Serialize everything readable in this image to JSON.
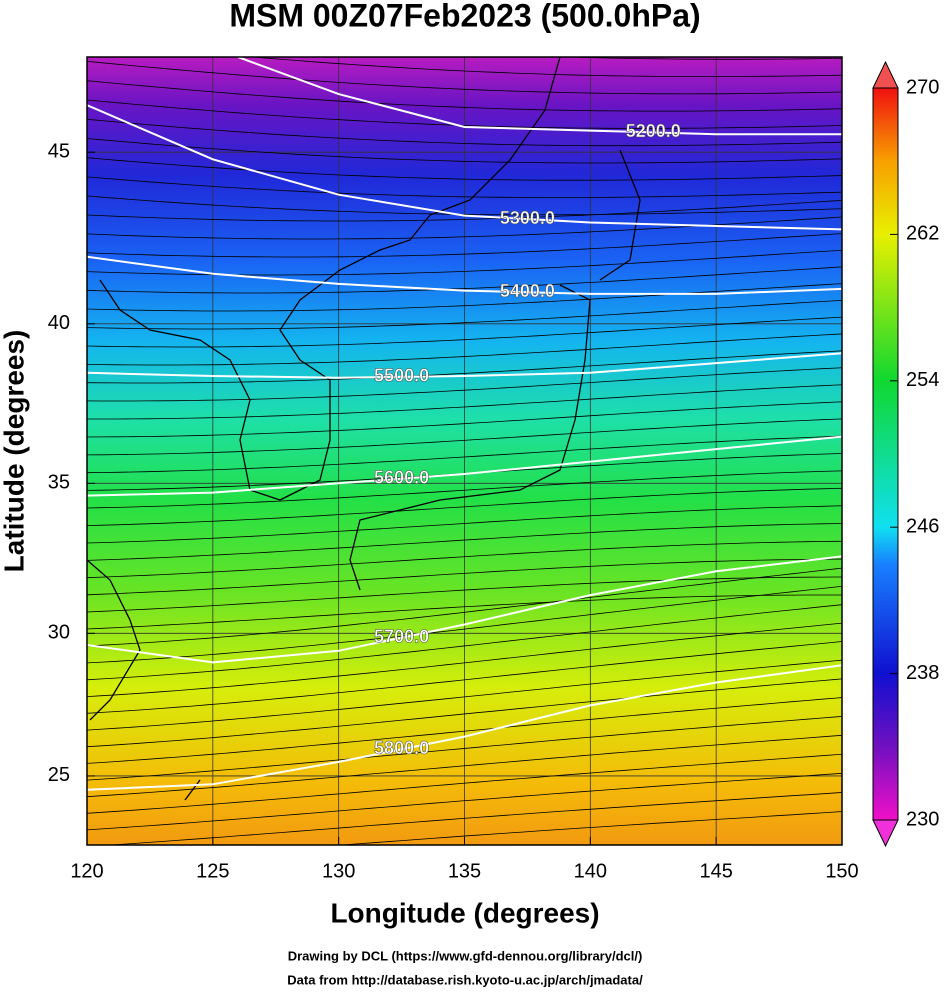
{
  "chart_data": {
    "type": "map",
    "title": "MSM 00Z07Feb2023 (500.0hPa)",
    "xlabel": "Longitude (degrees)",
    "ylabel": "Latitude  (degrees)",
    "xlim": [
      120,
      150
    ],
    "ylim": [
      22.5,
      47.6
    ],
    "yscale": "mercator",
    "xticks": [
      120,
      125,
      130,
      135,
      140,
      145,
      150
    ],
    "yticks": [
      25,
      30,
      35,
      40,
      45
    ],
    "colorbar": {
      "lim": [
        230,
        270
      ],
      "ticks": [
        230,
        238,
        246,
        254,
        262,
        270
      ]
    },
    "contour_color": "#ffffff",
    "contours": [
      {
        "value": 5200,
        "label": "5200.0",
        "lon": [
          126,
          130,
          135,
          140,
          145,
          150
        ],
        "lat": [
          47.6,
          46.6,
          45.7,
          45.6,
          45.5,
          45.5
        ]
      },
      {
        "value": 5300,
        "label": "5300.0",
        "lon": [
          120,
          125,
          130,
          135,
          140,
          145,
          150
        ],
        "lat": [
          46.3,
          44.8,
          43.8,
          43.2,
          43.0,
          42.9,
          42.8
        ]
      },
      {
        "value": 5400,
        "label": "5400.0",
        "lon": [
          120,
          125,
          130,
          135,
          140,
          145,
          150
        ],
        "lat": [
          42.0,
          41.5,
          41.2,
          41.0,
          40.9,
          40.9,
          41.05
        ]
      },
      {
        "value": 5500,
        "label": "5500.0",
        "lon": [
          120,
          125,
          130,
          135,
          140,
          145,
          150
        ],
        "lat": [
          38.5,
          38.4,
          38.35,
          38.4,
          38.5,
          38.8,
          39.1
        ]
      },
      {
        "value": 5600,
        "label": "5600.0",
        "lon": [
          120,
          125,
          130,
          135,
          140,
          145,
          150
        ],
        "lat": [
          34.6,
          34.7,
          35.0,
          35.3,
          35.7,
          36.1,
          36.5
        ]
      },
      {
        "value": 5700,
        "label": "5700.0",
        "lon": [
          120,
          125,
          130,
          135,
          140,
          145,
          150
        ],
        "lat": [
          29.6,
          29.0,
          29.4,
          30.3,
          31.3,
          32.1,
          32.6
        ]
      },
      {
        "value": 5800,
        "label": "5800.0",
        "lon": [
          120,
          125,
          130,
          135,
          140,
          145,
          150
        ],
        "lat": [
          24.5,
          24.7,
          25.5,
          26.4,
          27.5,
          28.3,
          28.9
        ]
      }
    ]
  },
  "credits": [
    "Drawing by DCL (https://www.gfd-dennou.org/library/dcl/)",
    "Data from http://database.rish.kyoto-u.ac.jp/arch/jmadata/"
  ]
}
